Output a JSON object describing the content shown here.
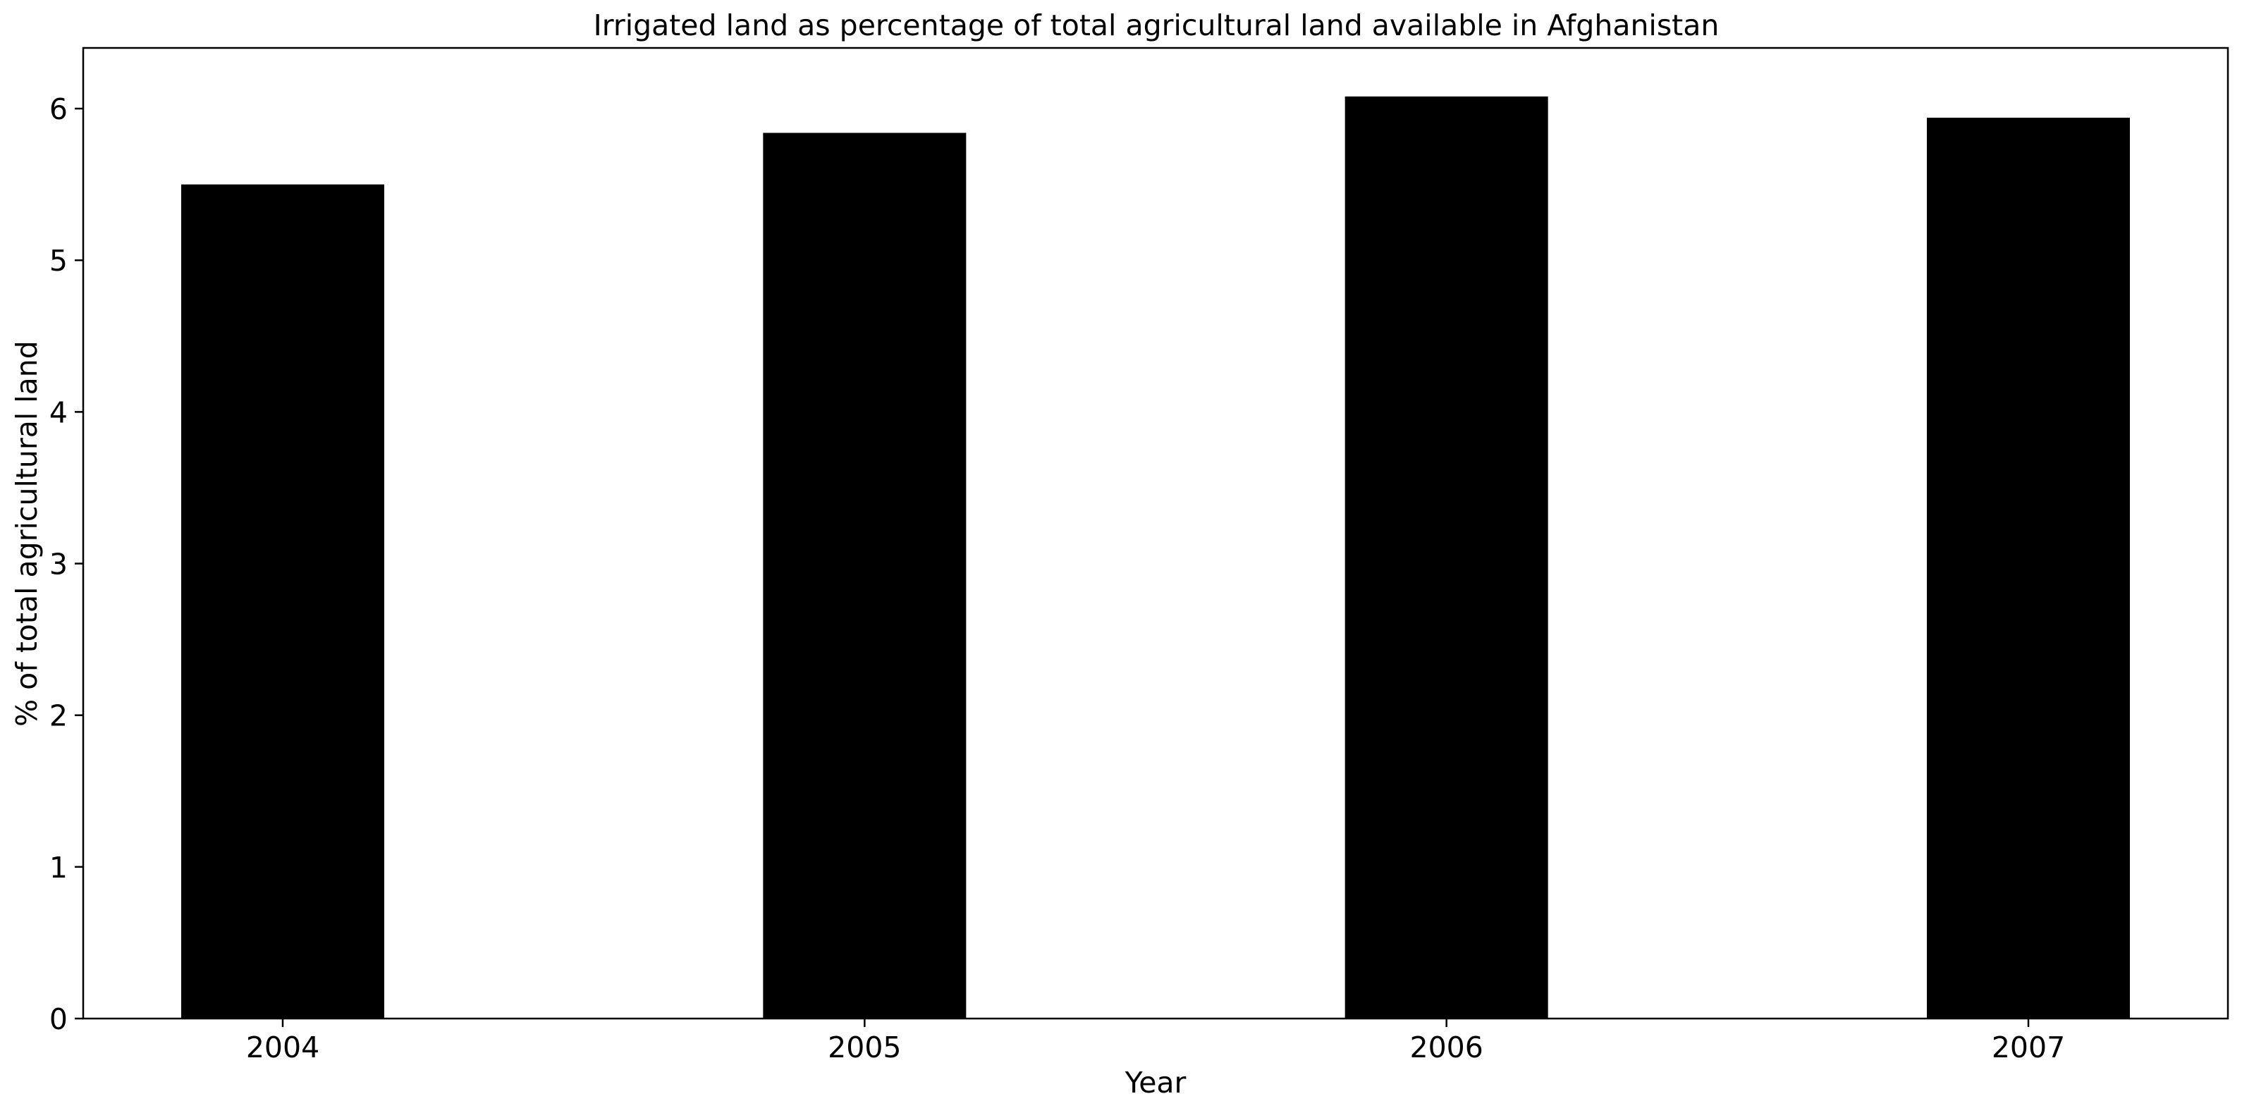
{
  "chart_data": {
    "type": "bar",
    "title": "Irrigated land as percentage of total agricultural land available in Afghanistan",
    "xlabel": "Year",
    "ylabel": "% of total agricultural land",
    "categories": [
      "2004",
      "2005",
      "2006",
      "2007"
    ],
    "values": [
      5.5,
      5.84,
      6.08,
      5.94
    ],
    "ylim": [
      0,
      6.4
    ],
    "yticks": [
      0,
      1,
      2,
      3,
      4,
      5,
      6
    ],
    "grid": false,
    "legend": "none",
    "bar_color": "#000000"
  }
}
